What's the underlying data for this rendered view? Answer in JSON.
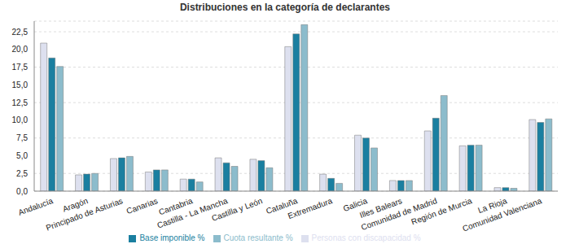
{
  "chart_data": {
    "type": "bar",
    "title": "Distribuciones en la categoría de declarantes",
    "categories": [
      "Andalucía",
      "Aragón",
      "Principado de Asturias",
      "Canarias",
      "Cantabria",
      "Castilla - La Mancha",
      "Castilla y León",
      "Cataluña",
      "Extremadura",
      "Galicia",
      "Illes Balears",
      "Comunidad de Madrid",
      "Región de Murcia",
      "La Rioja",
      "Comunidad Valenciana"
    ],
    "series": [
      {
        "name": "Personas con discapacidad %",
        "color": "#dde0ef",
        "values": [
          20.9,
          2.3,
          4.6,
          2.7,
          1.7,
          4.7,
          4.5,
          20.4,
          2.4,
          7.9,
          1.5,
          8.5,
          6.4,
          0.5,
          10.1
        ]
      },
      {
        "name": "Base imponible %",
        "color": "#1a7fa0",
        "values": [
          18.8,
          2.4,
          4.7,
          3.0,
          1.7,
          4.0,
          4.3,
          22.2,
          1.8,
          7.5,
          1.5,
          10.3,
          6.5,
          0.5,
          9.7
        ]
      },
      {
        "name": "Cuota resultante %",
        "color": "#8cbccc",
        "values": [
          17.6,
          2.5,
          4.9,
          3.0,
          1.3,
          3.5,
          3.3,
          23.5,
          1.1,
          6.1,
          1.5,
          13.5,
          6.5,
          0.4,
          10.2
        ]
      }
    ],
    "ylim": [
      0,
      24
    ],
    "yticks": [
      {
        "value": 0,
        "label": "0,0"
      },
      {
        "value": 2.5,
        "label": "2,5"
      },
      {
        "value": 5,
        "label": "5,0"
      },
      {
        "value": 7.5,
        "label": "7,5"
      },
      {
        "value": 10,
        "label": "10,0"
      },
      {
        "value": 12.5,
        "label": "12,5"
      },
      {
        "value": 15,
        "label": "15,0"
      },
      {
        "value": 17.5,
        "label": "17,5"
      },
      {
        "value": 20,
        "label": "20,0"
      },
      {
        "value": 22.5,
        "label": "22,5"
      }
    ],
    "grid": true,
    "legend": "bottom"
  }
}
